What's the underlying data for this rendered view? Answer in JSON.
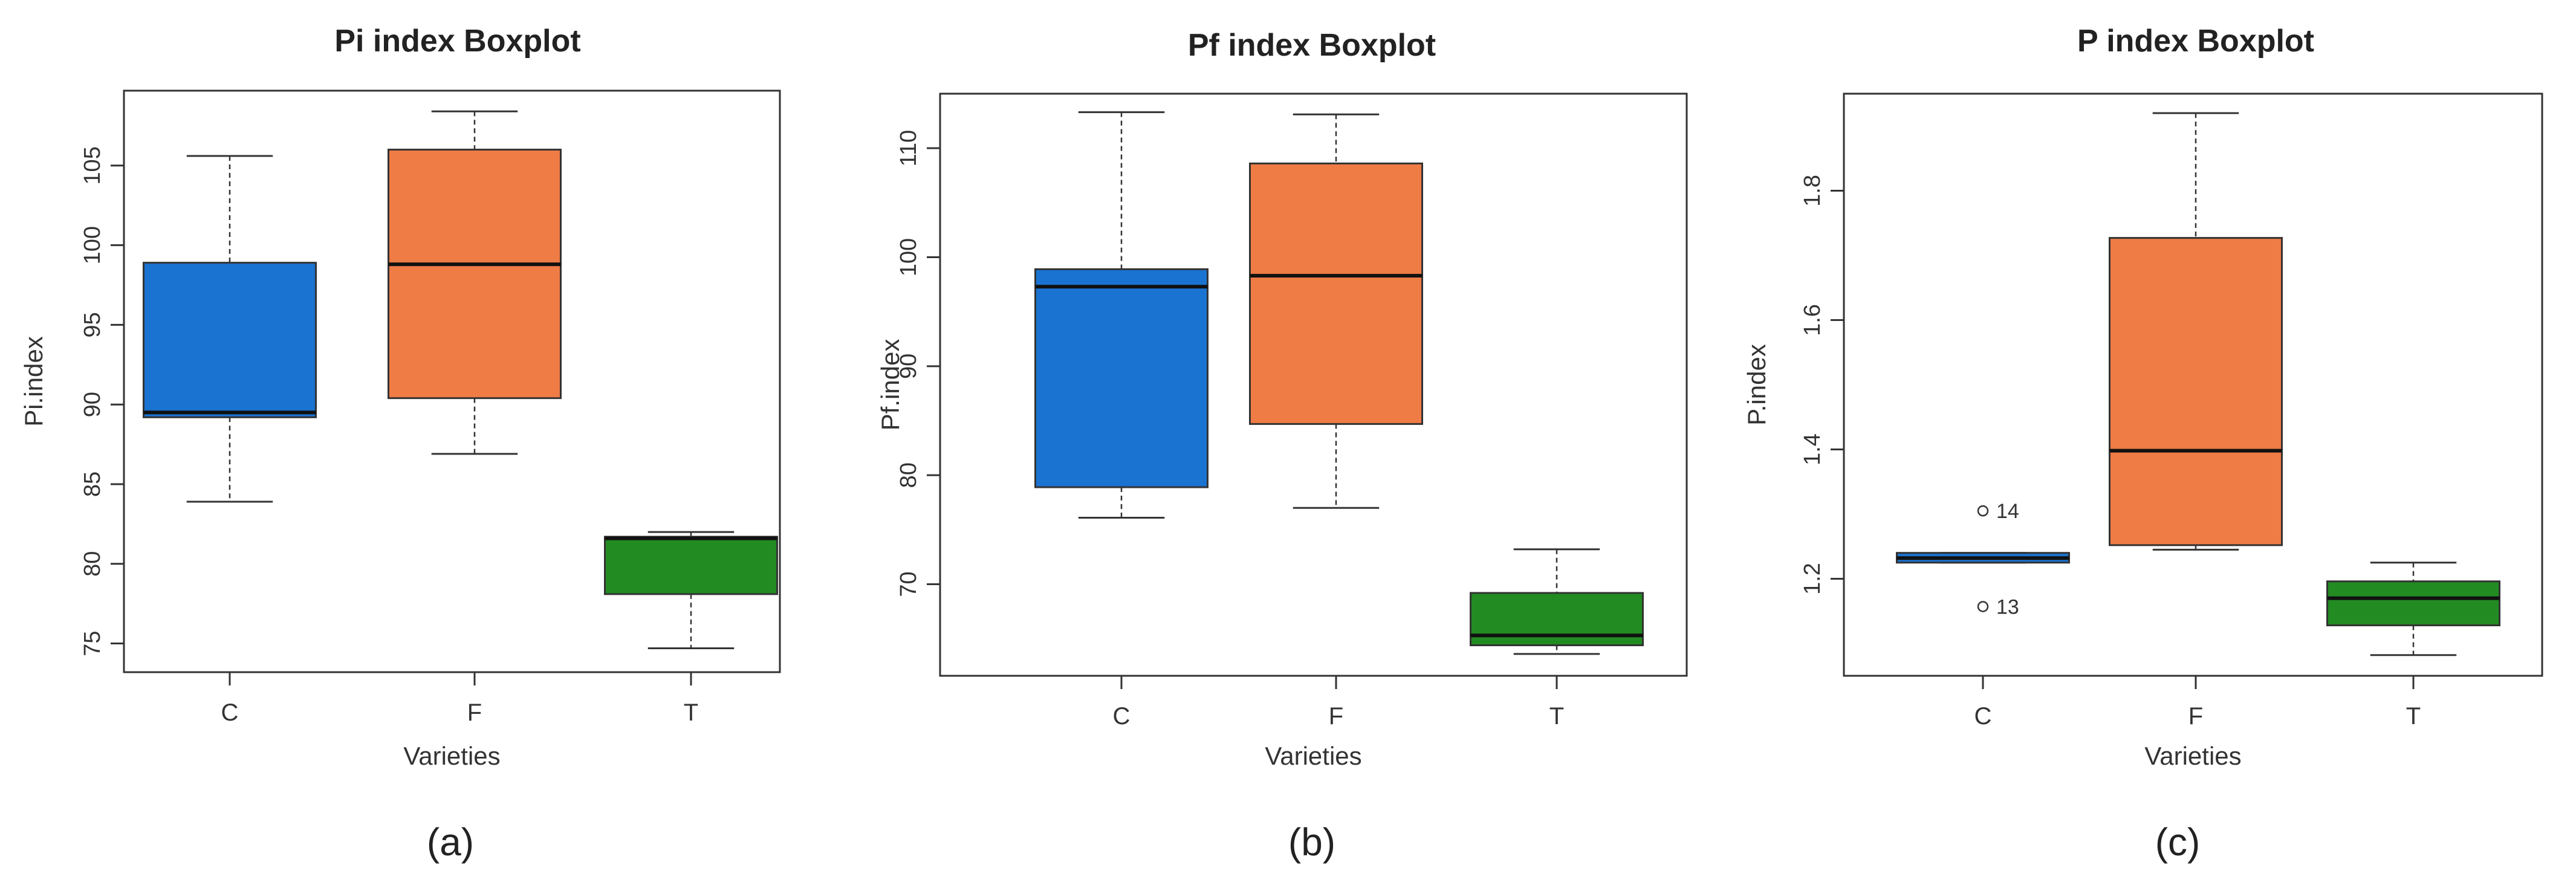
{
  "chart_data": [
    {
      "type": "boxplot",
      "title": "Pi index Boxplot",
      "xlabel": "Varieties",
      "ylabel": "Pi.index",
      "panel_label": "(a)",
      "ylim": [
        73.2,
        109.7
      ],
      "yticks": [
        75,
        80,
        85,
        90,
        95,
        100,
        105
      ],
      "categories": [
        "C",
        "F",
        "T"
      ],
      "colors": [
        "#1a73d0",
        "#ef7b45",
        "#228b22"
      ],
      "boxes": [
        {
          "min": 83.9,
          "q1": 89.2,
          "median": 89.5,
          "q3": 98.9,
          "max": 105.6,
          "outliers": []
        },
        {
          "min": 86.9,
          "q1": 90.4,
          "median": 98.8,
          "q3": 106.0,
          "max": 108.4,
          "outliers": []
        },
        {
          "min": 74.7,
          "q1": 78.1,
          "median": 81.6,
          "q3": 81.7,
          "max": 82.0,
          "outliers": []
        }
      ]
    },
    {
      "type": "boxplot",
      "title": "Pf index Boxplot",
      "xlabel": "Varieties",
      "ylabel": "Pf.index",
      "panel_label": "(b)",
      "ylim": [
        61.6,
        115.0
      ],
      "yticks": [
        70,
        80,
        90,
        100,
        110
      ],
      "categories": [
        "C",
        "F",
        "T"
      ],
      "colors": [
        "#1a73d0",
        "#ef7b45",
        "#228b22"
      ],
      "boxes": [
        {
          "min": 76.1,
          "q1": 78.9,
          "median": 97.3,
          "q3": 98.9,
          "max": 113.3,
          "outliers": []
        },
        {
          "min": 77.0,
          "q1": 84.7,
          "median": 98.3,
          "q3": 108.6,
          "max": 113.1,
          "outliers": []
        },
        {
          "min": 63.6,
          "q1": 64.4,
          "median": 65.3,
          "q3": 69.2,
          "max": 73.2,
          "outliers": []
        }
      ]
    },
    {
      "type": "boxplot",
      "title": "P index Boxplot",
      "xlabel": "Varieties",
      "ylabel": "P.index",
      "panel_label": "(c)",
      "ylim": [
        1.05,
        1.95
      ],
      "yticks": [
        1.2,
        1.4,
        1.6,
        1.8
      ],
      "categories": [
        "C",
        "F",
        "T"
      ],
      "colors": [
        "#1a73d0",
        "#ef7b45",
        "#228b22"
      ],
      "boxes": [
        {
          "min": 1.225,
          "q1": 1.225,
          "median": 1.232,
          "q3": 1.24,
          "max": 1.24,
          "outliers": [
            {
              "value": 1.305,
              "label": "14"
            },
            {
              "value": 1.157,
              "label": "13"
            }
          ]
        },
        {
          "min": 1.245,
          "q1": 1.252,
          "median": 1.398,
          "q3": 1.727,
          "max": 1.92,
          "outliers": []
        },
        {
          "min": 1.082,
          "q1": 1.128,
          "median": 1.17,
          "q3": 1.196,
          "max": 1.225,
          "outliers": []
        }
      ]
    }
  ]
}
